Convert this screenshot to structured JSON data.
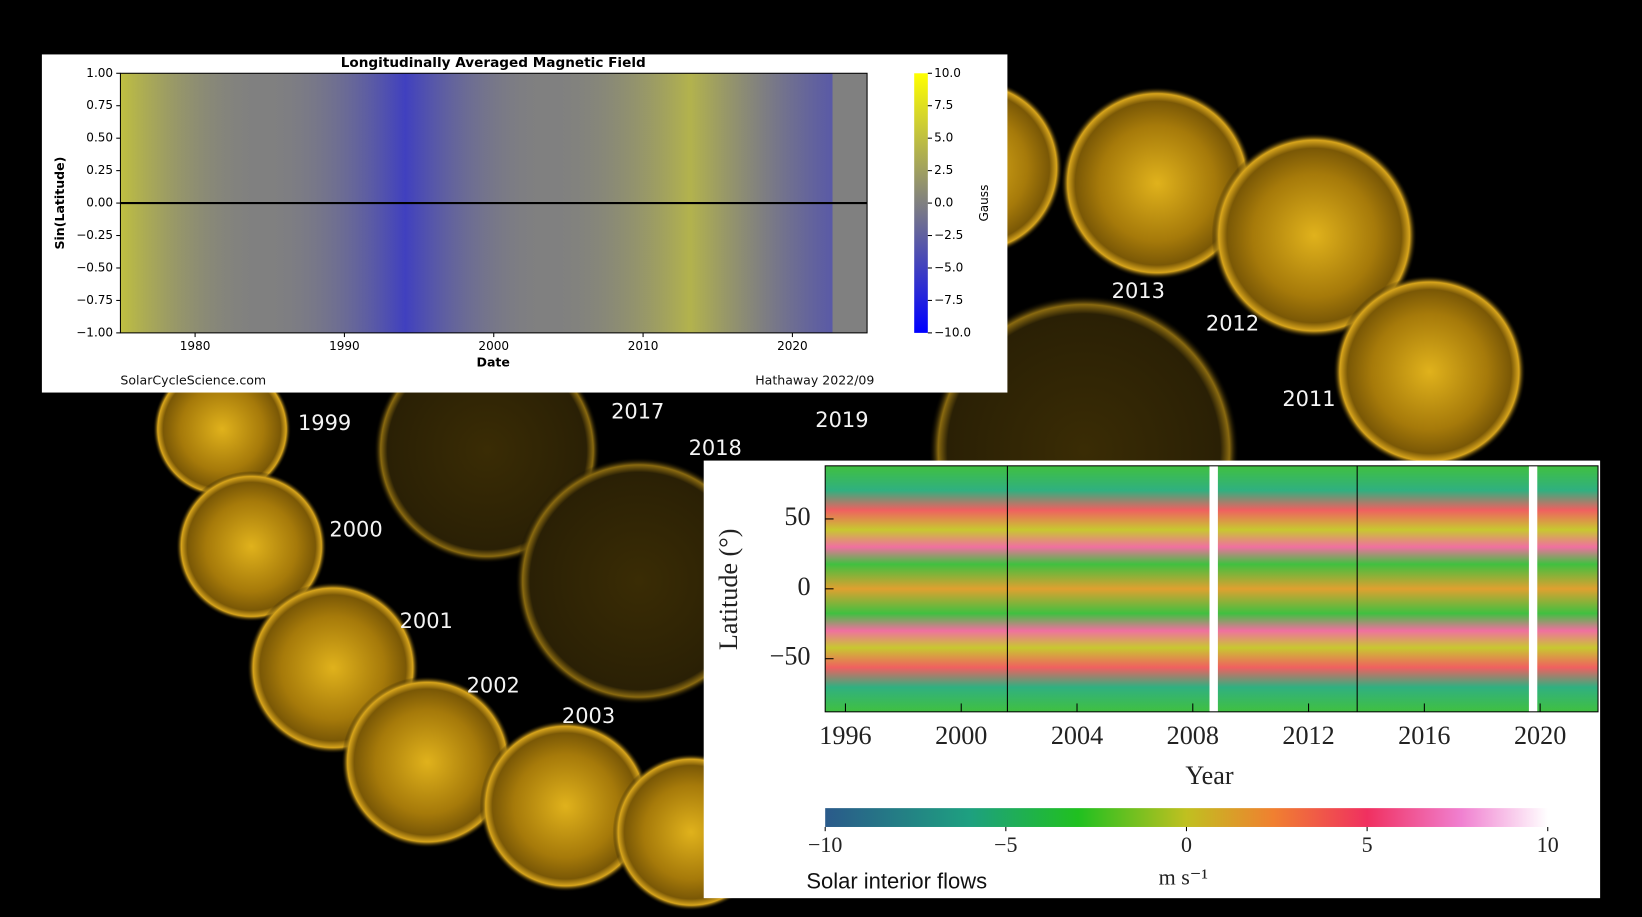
{
  "sun_labels": [
    "1999",
    "2000",
    "2001",
    "2002",
    "2003",
    "2017",
    "2018",
    "2019",
    "2013",
    "2012",
    "2011"
  ],
  "chart_data": [
    {
      "type": "heatmap",
      "title": "Longitudinally Averaged Magnetic Field",
      "xlabel": "Date",
      "ylabel": "Sin(Latitude)",
      "xlim": [
        1975,
        2025
      ],
      "xticks": [
        1980,
        1990,
        2000,
        2010,
        2020
      ],
      "ylim": [
        -1,
        1
      ],
      "yticks": [
        {
          "value": 1,
          "label": "1.00"
        },
        {
          "value": 0.75,
          "label": "0.75"
        },
        {
          "value": 0.5,
          "label": "0.50"
        },
        {
          "value": 0.25,
          "label": "0.25"
        },
        {
          "value": 0,
          "label": "0.00"
        },
        {
          "value": -0.25,
          "label": "−0.25"
        },
        {
          "value": -0.5,
          "label": "−0.50"
        },
        {
          "value": -0.75,
          "label": "−0.75"
        },
        {
          "value": -1,
          "label": "−1.00"
        }
      ],
      "colorbar": {
        "label": "Gauss",
        "lim": [
          -10,
          10
        ],
        "ticks": [
          {
            "value": 10,
            "label": "10.0"
          },
          {
            "value": 7.5,
            "label": "7.5"
          },
          {
            "value": 5,
            "label": "5.0"
          },
          {
            "value": 2.5,
            "label": "2.5"
          },
          {
            "value": 0,
            "label": "0.0"
          },
          {
            "value": -2.5,
            "label": "−2.5"
          },
          {
            "value": -5,
            "label": "−5.0"
          },
          {
            "value": -7.5,
            "label": "−7.5"
          },
          {
            "value": -10,
            "label": "−10.0"
          }
        ]
      },
      "annotations": [
        "SolarCycleScience.com",
        "Hathaway 2022/09"
      ]
    },
    {
      "type": "heatmap",
      "xlabel": "Year",
      "ylabel": "Latitude (°)",
      "xlim": [
        1995.3,
        2022
      ],
      "xticks": [
        1996,
        2000,
        2004,
        2008,
        2012,
        2016,
        2020
      ],
      "ylim": [
        -88,
        88
      ],
      "yticks": [
        50,
        0,
        {
          "value": -50,
          "label": "−50"
        }
      ],
      "colorbar": {
        "label": "m s⁻¹",
        "lim": [
          -10,
          10
        ],
        "ticks": [
          {
            "value": -10,
            "label": "−10"
          },
          {
            "value": -5,
            "label": "−5"
          },
          0,
          5,
          10
        ]
      },
      "annotations": [
        "Solar interior flows"
      ]
    }
  ]
}
